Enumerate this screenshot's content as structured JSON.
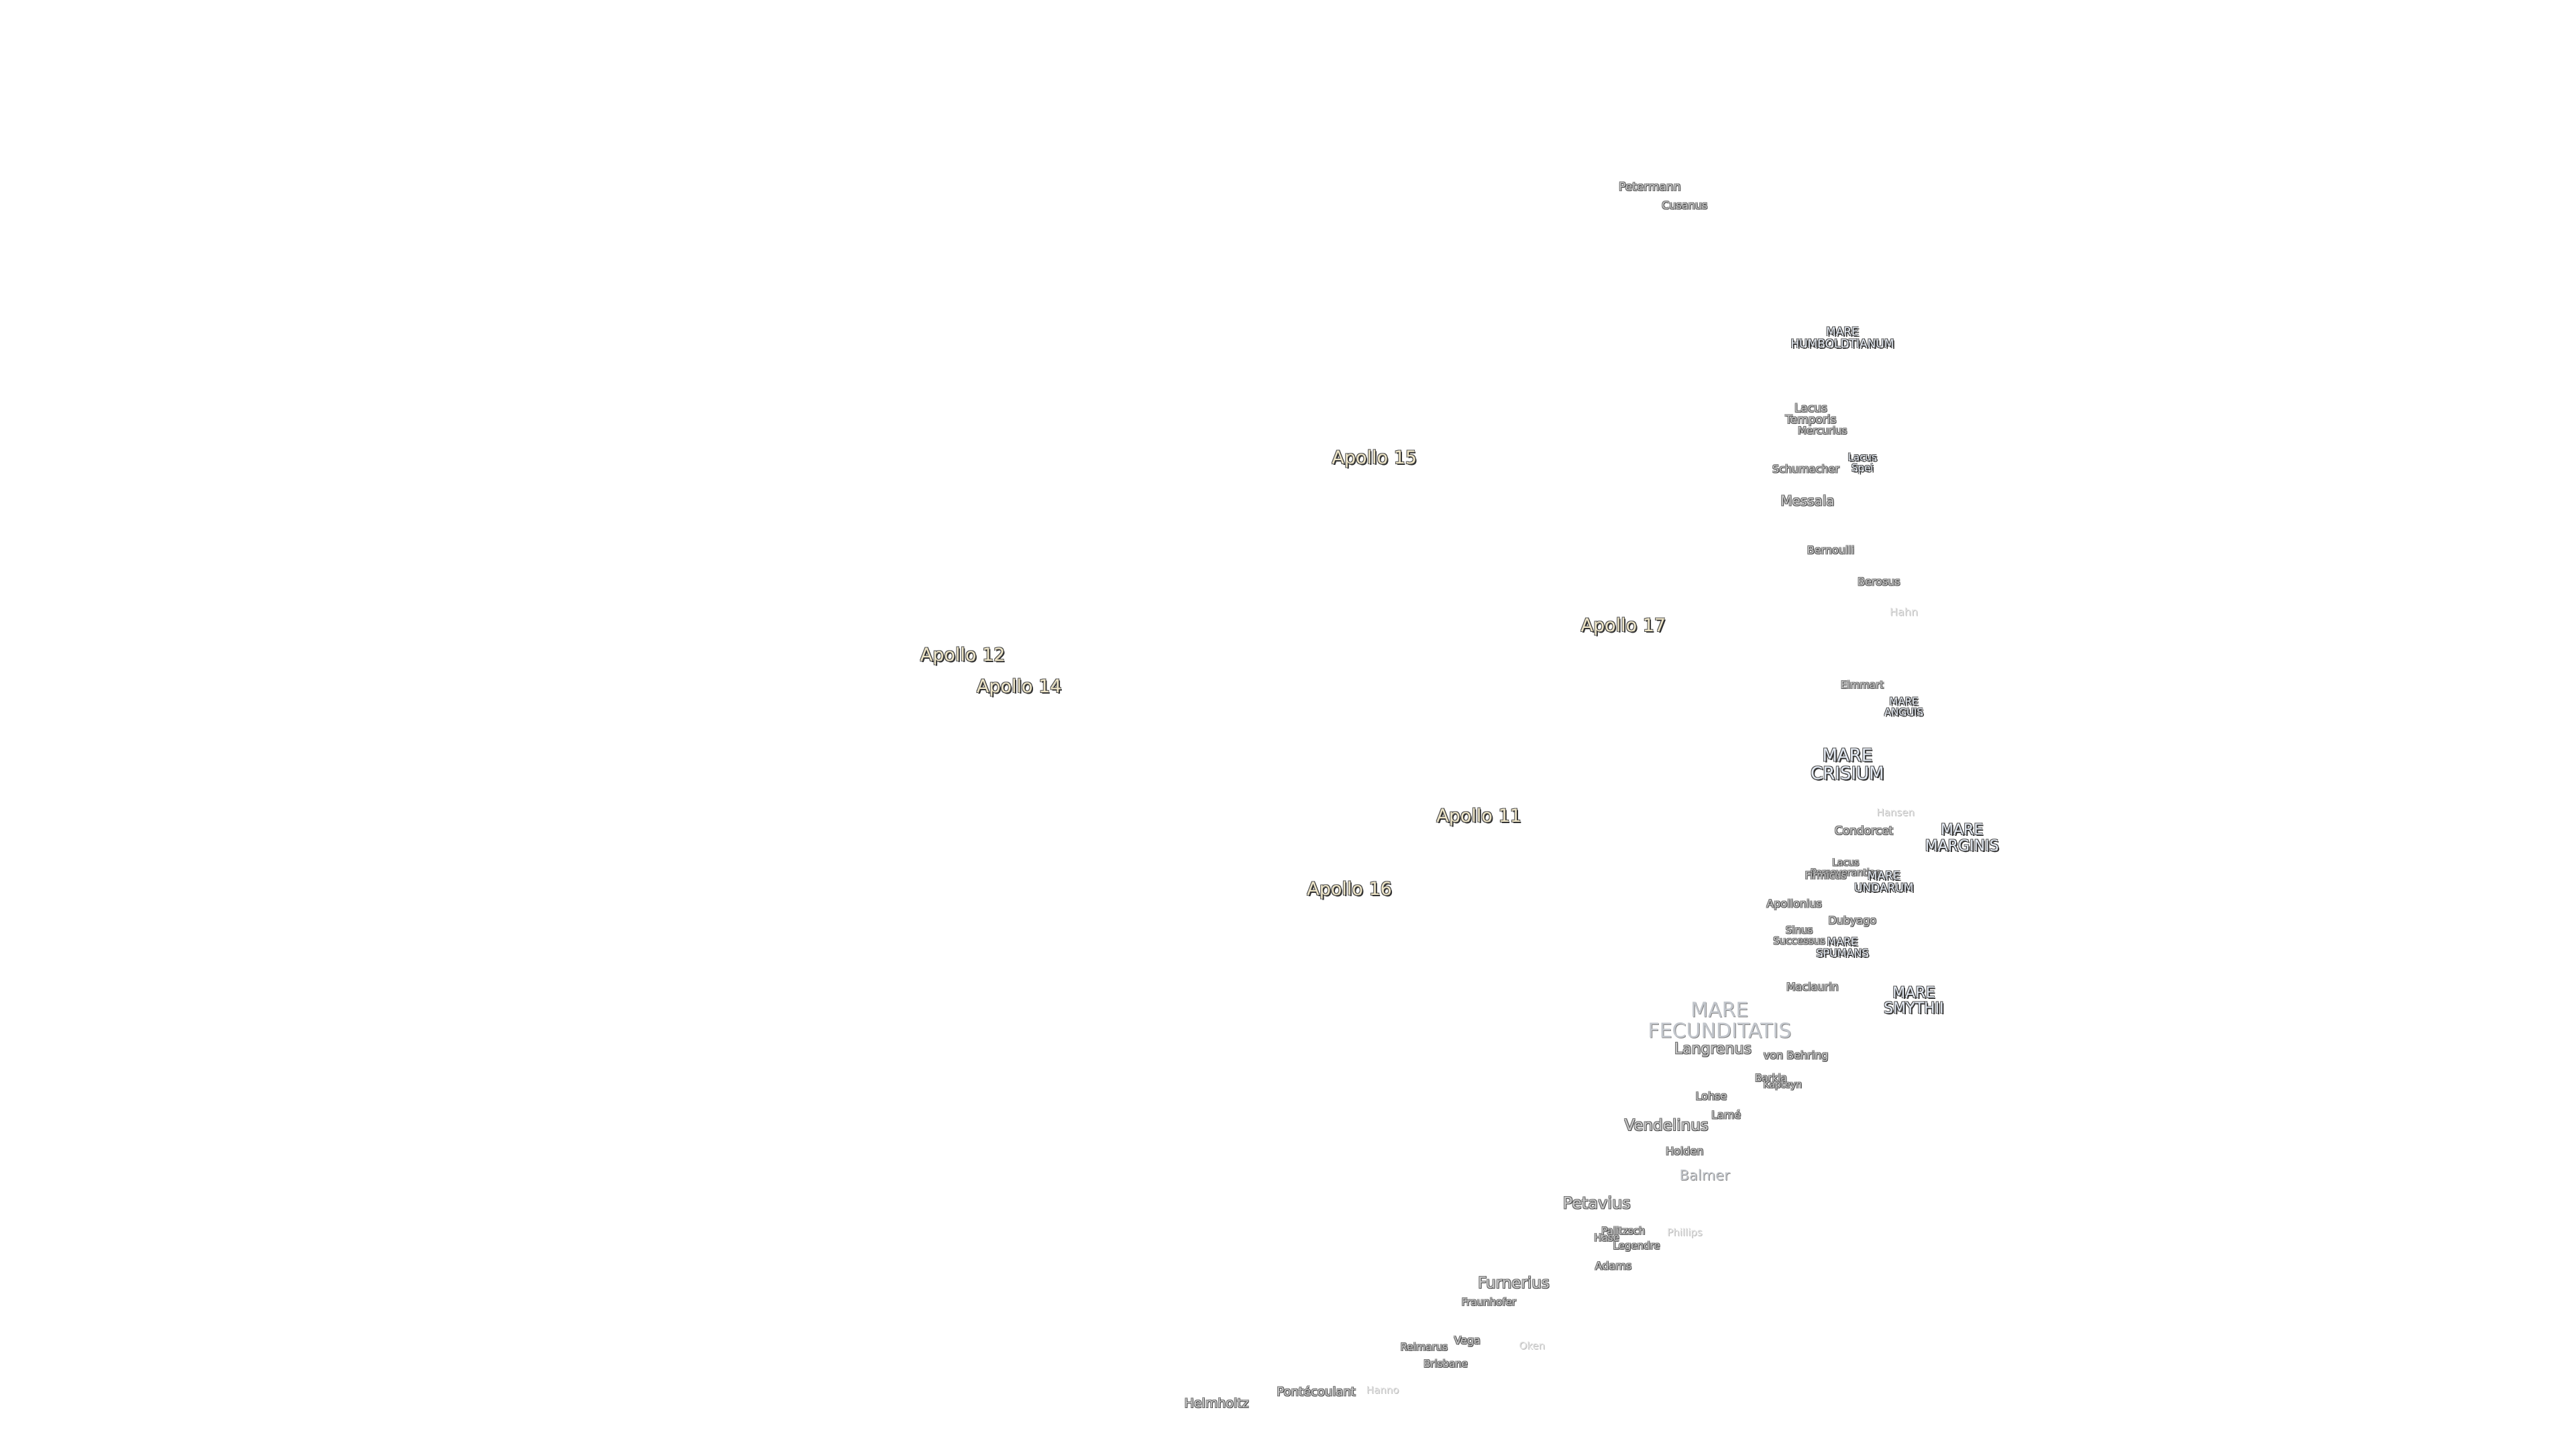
{
  "labels": [
    {
      "lines": [
        "Petermann"
      ]
    },
    {
      "lines": [
        "Cusanus"
      ]
    },
    {
      "lines": [
        "MARE",
        "HUMBOLDTIANUM"
      ]
    },
    {
      "lines": [
        "Lacus",
        "Temporis"
      ]
    },
    {
      "lines": [
        "Mercurius"
      ]
    },
    {
      "lines": [
        "Lacus",
        "Spei"
      ]
    },
    {
      "lines": [
        "Schumacher"
      ]
    },
    {
      "lines": [
        "Messala"
      ]
    },
    {
      "lines": [
        "Apollo 15"
      ]
    },
    {
      "lines": [
        "Bernoulli"
      ]
    },
    {
      "lines": [
        "Berosus"
      ]
    },
    {
      "lines": [
        "Hahn"
      ]
    },
    {
      "lines": [
        "Apollo 17"
      ]
    },
    {
      "lines": [
        "Apollo 12"
      ]
    },
    {
      "lines": [
        "Apollo 14"
      ]
    },
    {
      "lines": [
        "Eimmart"
      ]
    },
    {
      "lines": [
        "MARE",
        "ANGUIS"
      ]
    },
    {
      "lines": [
        "MARE",
        "CRISIUM"
      ]
    },
    {
      "lines": [
        "Hansen"
      ]
    },
    {
      "lines": [
        "Condorcet"
      ]
    },
    {
      "lines": [
        "MARE",
        "MARGINIS"
      ]
    },
    {
      "lines": [
        "Apollo 11"
      ]
    },
    {
      "lines": [
        "Lacus",
        "Perseverantiae"
      ]
    },
    {
      "lines": [
        "Firmicus"
      ]
    },
    {
      "lines": [
        "MARE",
        "UNDARUM"
      ]
    },
    {
      "lines": [
        "Apollo 16"
      ]
    },
    {
      "lines": [
        "Apollonius"
      ]
    },
    {
      "lines": [
        "Dubyago"
      ]
    },
    {
      "lines": [
        "Sinus",
        "Successus"
      ]
    },
    {
      "lines": [
        "MARE",
        "SPUMANS"
      ]
    },
    {
      "lines": [
        "Maclaurin"
      ]
    },
    {
      "lines": [
        "MARE",
        "SMYTHII"
      ]
    },
    {
      "lines": [
        "MARE",
        "FECUNDITATIS"
      ]
    },
    {
      "lines": [
        "Langrenus"
      ]
    },
    {
      "lines": [
        "von Behring"
      ]
    },
    {
      "lines": [
        "Barkla"
      ]
    },
    {
      "lines": [
        "Kapteyn"
      ]
    },
    {
      "lines": [
        "Lohse"
      ]
    },
    {
      "lines": [
        "Lamé"
      ]
    },
    {
      "lines": [
        "Vendelinus"
      ]
    },
    {
      "lines": [
        "Holden"
      ]
    },
    {
      "lines": [
        "Balmer"
      ]
    },
    {
      "lines": [
        "Petavius"
      ]
    },
    {
      "lines": [
        "Palitzsch"
      ]
    },
    {
      "lines": [
        "Hase"
      ]
    },
    {
      "lines": [
        "Legendre"
      ]
    },
    {
      "lines": [
        "Phillips"
      ]
    },
    {
      "lines": [
        "Adams"
      ]
    },
    {
      "lines": [
        "Furnerius"
      ]
    },
    {
      "lines": [
        "Fraunhofer"
      ]
    },
    {
      "lines": [
        "Vega"
      ]
    },
    {
      "lines": [
        "Reimarus"
      ]
    },
    {
      "lines": [
        "Brisbane"
      ]
    },
    {
      "lines": [
        "Oken"
      ]
    },
    {
      "lines": [
        "Pontécoulant"
      ]
    },
    {
      "lines": [
        "Hanno"
      ]
    },
    {
      "lines": [
        "Helmholtz"
      ]
    }
  ]
}
